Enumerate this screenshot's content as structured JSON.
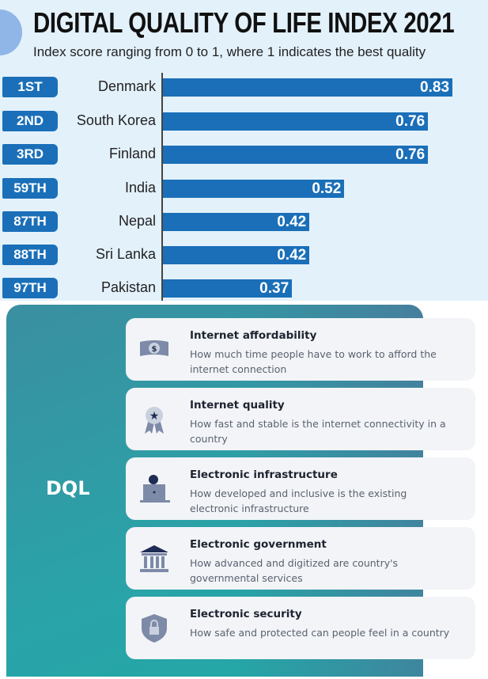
{
  "header": {
    "title": "DIGITAL QUALITY OF LIFE INDEX 2021",
    "subtitle": "Index score ranging from 0 to 1, where 1 indicates the best quality"
  },
  "chart_data": {
    "type": "bar",
    "orientation": "horizontal",
    "title": "DIGITAL QUALITY OF LIFE INDEX 2021",
    "subtitle": "Index score ranging from 0 to 1, where 1 indicates the best quality",
    "categories": [
      "Denmark",
      "South Korea",
      "Finland",
      "India",
      "Nepal",
      "Sri Lanka",
      "Pakistan"
    ],
    "ranks": [
      "1ST",
      "2ND",
      "3RD",
      "59TH",
      "87TH",
      "88TH",
      "97TH"
    ],
    "values": [
      0.83,
      0.76,
      0.76,
      0.52,
      0.42,
      0.42,
      0.37
    ],
    "labels": [
      "0.83",
      "0.76",
      "0.76",
      "0.52",
      "0.42",
      "0.42",
      "0.37"
    ],
    "xlim": [
      0,
      1
    ],
    "grid": false,
    "bar_color": "#1a6fb8",
    "rank_color": "#1a6fb8"
  },
  "panel": {
    "label": "DQL",
    "items": [
      {
        "title": "Internet affordability",
        "desc": "How much time people have to work to afford the internet connection",
        "icon": "money-icon"
      },
      {
        "title": "Internet quality",
        "desc": "How fast and stable is the internet connectivity in a country",
        "icon": "award-ribbon-icon"
      },
      {
        "title": "Electronic infrastructure",
        "desc": "How developed and inclusive is the existing electronic infrastructure",
        "icon": "person-laptop-icon"
      },
      {
        "title": "Electronic government",
        "desc": "How advanced and digitized are country's governmental services",
        "icon": "government-building-icon"
      },
      {
        "title": "Electronic security",
        "desc": "How safe and protected can people feel in a country",
        "icon": "shield-lock-icon"
      }
    ]
  }
}
